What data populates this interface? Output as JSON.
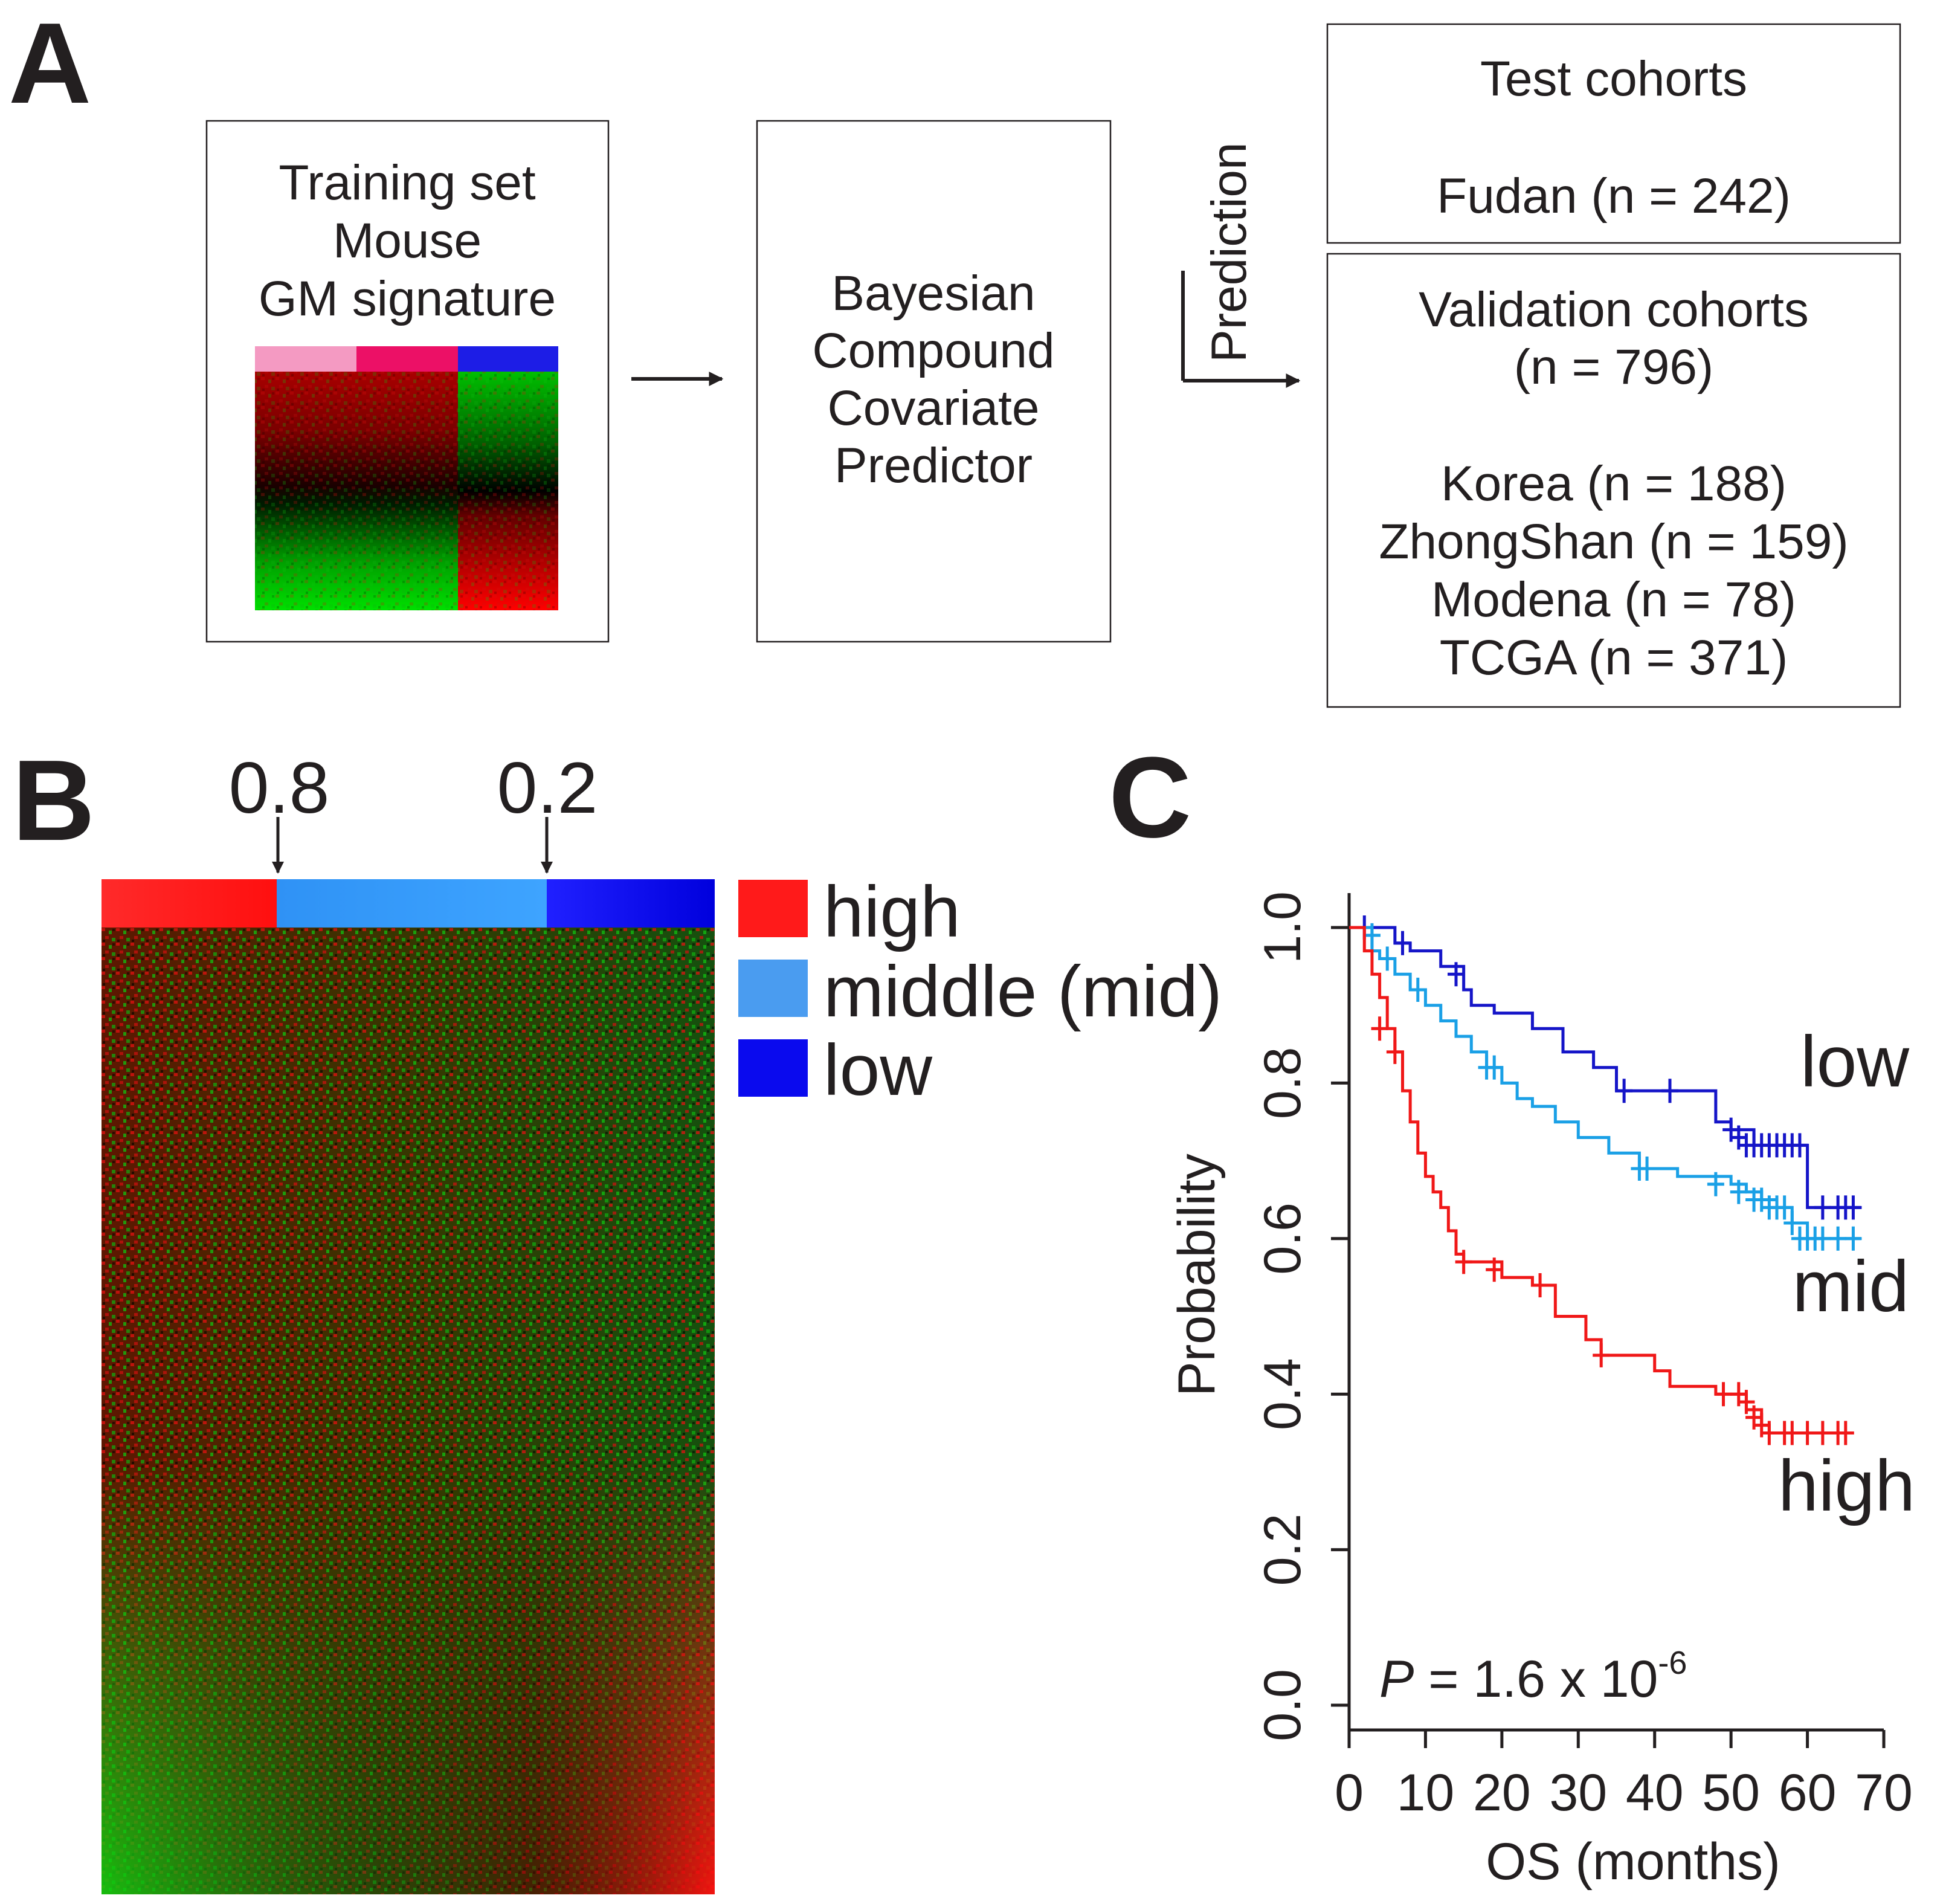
{
  "panel_a": {
    "label": "A",
    "training_box": {
      "lines": [
        "Training set",
        "Mouse",
        "GM signature"
      ]
    },
    "predictor_box": {
      "lines": [
        "Bayesian",
        "Compound",
        "Covariate",
        "Predictor"
      ]
    },
    "prediction_label": "Prediction",
    "test_box": {
      "title": "Test cohorts",
      "cohort": "Fudan (n = 242)"
    },
    "validation_box": {
      "title": "Validation cohorts",
      "total": "(n = 796)",
      "cohorts": [
        "Korea (n = 188)",
        "ZhongShan (n = 159)",
        "Modena (n = 78)",
        "TCGA (n = 371)"
      ]
    },
    "colors": {
      "pink": "#f49ac2",
      "magenta": "#ec1066",
      "blue": "#1d1de6"
    }
  },
  "panel_b": {
    "label": "B",
    "cutoffs": [
      "0.8",
      "0.2"
    ],
    "legend": [
      {
        "label": "high",
        "color": "#ff1a1a"
      },
      {
        "label": "middle (mid)",
        "color": "#4a9cf0"
      },
      {
        "label": "low",
        "color": "#0a0aee"
      }
    ]
  },
  "panel_c": {
    "label": "C",
    "p_value": {
      "prefix": "P",
      "text": " = 1.6 x 10",
      "exponent": "-6"
    }
  },
  "chart_data": {
    "type": "line",
    "title": "",
    "xlabel": "OS (months)",
    "ylabel": "Probability",
    "xlim": [
      0,
      70
    ],
    "ylim": [
      0,
      1.0
    ],
    "xticks": [
      "0",
      "10",
      "20",
      "30",
      "40",
      "50",
      "60",
      "70"
    ],
    "yticks": [
      "0.0",
      "0.2",
      "0.4",
      "0.6",
      "0.8",
      "1.0"
    ],
    "series": [
      {
        "name": "low",
        "color": "#1515c8",
        "steps": [
          [
            0,
            1.0
          ],
          [
            6,
            0.98
          ],
          [
            8,
            0.97
          ],
          [
            12,
            0.95
          ],
          [
            15,
            0.92
          ],
          [
            16,
            0.9
          ],
          [
            19,
            0.89
          ],
          [
            24,
            0.87
          ],
          [
            28,
            0.84
          ],
          [
            32,
            0.82
          ],
          [
            35,
            0.79
          ],
          [
            48,
            0.75
          ],
          [
            50,
            0.74
          ],
          [
            53,
            0.72
          ],
          [
            60,
            0.64
          ],
          [
            67,
            0.64
          ]
        ],
        "censors": [
          [
            2,
            1.0
          ],
          [
            7,
            0.98
          ],
          [
            14,
            0.94
          ],
          [
            36,
            0.79
          ],
          [
            42,
            0.79
          ],
          [
            50,
            0.74
          ],
          [
            51,
            0.73
          ],
          [
            52,
            0.72
          ],
          [
            53,
            0.72
          ],
          [
            54,
            0.72
          ],
          [
            55,
            0.72
          ],
          [
            56,
            0.72
          ],
          [
            57,
            0.72
          ],
          [
            58,
            0.72
          ],
          [
            59,
            0.72
          ],
          [
            62,
            0.64
          ],
          [
            64,
            0.64
          ],
          [
            65,
            0.64
          ],
          [
            66,
            0.64
          ]
        ]
      },
      {
        "name": "mid",
        "color": "#1aa0e6",
        "steps": [
          [
            0,
            1.0
          ],
          [
            3,
            0.97
          ],
          [
            4,
            0.96
          ],
          [
            6,
            0.94
          ],
          [
            8,
            0.92
          ],
          [
            10,
            0.9
          ],
          [
            12,
            0.88
          ],
          [
            14,
            0.86
          ],
          [
            16,
            0.84
          ],
          [
            18,
            0.82
          ],
          [
            20,
            0.8
          ],
          [
            22,
            0.78
          ],
          [
            24,
            0.77
          ],
          [
            27,
            0.75
          ],
          [
            30,
            0.73
          ],
          [
            34,
            0.71
          ],
          [
            38,
            0.69
          ],
          [
            43,
            0.68
          ],
          [
            50,
            0.67
          ],
          [
            52,
            0.66
          ],
          [
            54,
            0.65
          ],
          [
            56,
            0.64
          ],
          [
            58,
            0.62
          ],
          [
            60,
            0.6
          ],
          [
            67,
            0.6
          ]
        ],
        "censors": [
          [
            3,
            0.99
          ],
          [
            5,
            0.96
          ],
          [
            9,
            0.92
          ],
          [
            18,
            0.82
          ],
          [
            19,
            0.82
          ],
          [
            38,
            0.69
          ],
          [
            39,
            0.69
          ],
          [
            48,
            0.67
          ],
          [
            51,
            0.66
          ],
          [
            53,
            0.65
          ],
          [
            54,
            0.65
          ],
          [
            55,
            0.64
          ],
          [
            56,
            0.64
          ],
          [
            57,
            0.64
          ],
          [
            58,
            0.62
          ],
          [
            59,
            0.6
          ],
          [
            60,
            0.6
          ],
          [
            61,
            0.6
          ],
          [
            62,
            0.6
          ],
          [
            64,
            0.6
          ],
          [
            66,
            0.6
          ]
        ]
      },
      {
        "name": "high",
        "color": "#f01818",
        "steps": [
          [
            0,
            1.0
          ],
          [
            2,
            0.97
          ],
          [
            3,
            0.94
          ],
          [
            4,
            0.91
          ],
          [
            5,
            0.87
          ],
          [
            6,
            0.84
          ],
          [
            7,
            0.79
          ],
          [
            8,
            0.75
          ],
          [
            9,
            0.71
          ],
          [
            10,
            0.68
          ],
          [
            11,
            0.66
          ],
          [
            12,
            0.64
          ],
          [
            13,
            0.61
          ],
          [
            14,
            0.58
          ],
          [
            15,
            0.57
          ],
          [
            20,
            0.55
          ],
          [
            24,
            0.54
          ],
          [
            27,
            0.5
          ],
          [
            31,
            0.47
          ],
          [
            33,
            0.45
          ],
          [
            40,
            0.43
          ],
          [
            42,
            0.41
          ],
          [
            48,
            0.4
          ],
          [
            52,
            0.38
          ],
          [
            54,
            0.36
          ],
          [
            55,
            0.35
          ],
          [
            66,
            0.35
          ]
        ],
        "censors": [
          [
            4,
            0.87
          ],
          [
            6,
            0.84
          ],
          [
            15,
            0.57
          ],
          [
            19,
            0.56
          ],
          [
            25,
            0.54
          ],
          [
            33,
            0.45
          ],
          [
            49,
            0.4
          ],
          [
            51,
            0.4
          ],
          [
            52,
            0.39
          ],
          [
            53,
            0.37
          ],
          [
            54,
            0.36
          ],
          [
            55,
            0.35
          ],
          [
            57,
            0.35
          ],
          [
            58,
            0.35
          ],
          [
            60,
            0.35
          ],
          [
            62,
            0.35
          ],
          [
            64,
            0.35
          ],
          [
            65,
            0.35
          ]
        ]
      }
    ]
  }
}
